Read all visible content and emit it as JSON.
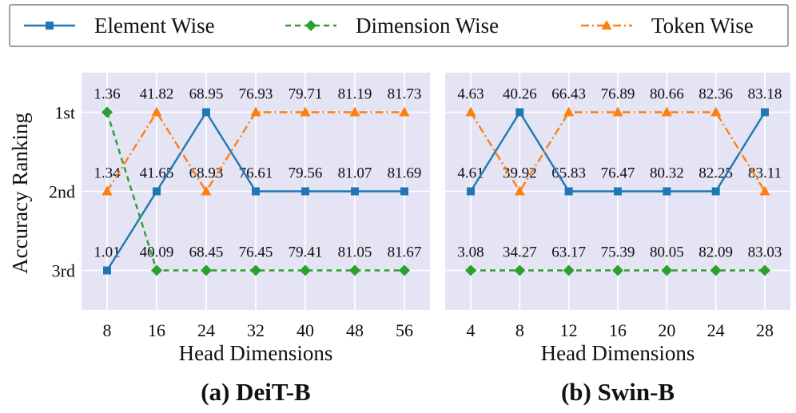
{
  "legend": [
    {
      "name": "Element Wise",
      "color": "#1f77b4",
      "marker": "square",
      "dash": "solid"
    },
    {
      "name": "Dimension Wise",
      "color": "#2ca02c",
      "marker": "diamond",
      "dash": "dashed"
    },
    {
      "name": "Token Wise",
      "color": "#ff7f0e",
      "marker": "triangle",
      "dash": "dashdot"
    }
  ],
  "ylabel": "Accuracy Ranking",
  "yticks": [
    "1st",
    "2nd",
    "3rd"
  ],
  "chart_data": [
    {
      "type": "line",
      "title": "(a) DeiT-B",
      "xlabel": "Head Dimensions",
      "ylabel": "Accuracy Ranking",
      "x": [
        8,
        16,
        24,
        32,
        40,
        48,
        56
      ],
      "ylim": [
        0.5,
        3.5
      ],
      "grid": true,
      "series": [
        {
          "name": "Element Wise",
          "ranks": [
            3,
            2,
            1,
            2,
            2,
            2,
            2
          ]
        },
        {
          "name": "Dimension Wise",
          "ranks": [
            1,
            3,
            3,
            3,
            3,
            3,
            3
          ]
        },
        {
          "name": "Token Wise",
          "ranks": [
            2,
            1,
            2,
            1,
            1,
            1,
            1
          ]
        }
      ],
      "labels_by_rank": {
        "1": [
          "1.36",
          "41.82",
          "68.95",
          "76.93",
          "79.71",
          "81.19",
          "81.73"
        ],
        "2": [
          "1.34",
          "41.65",
          "68.93",
          "76.61",
          "79.56",
          "81.07",
          "81.69"
        ],
        "3": [
          "1.01",
          "40.09",
          "68.45",
          "76.45",
          "79.41",
          "81.05",
          "81.67"
        ]
      }
    },
    {
      "type": "line",
      "title": "(b) Swin-B",
      "xlabel": "Head Dimensions",
      "ylabel": "Accuracy Ranking",
      "x": [
        4,
        8,
        12,
        16,
        20,
        24,
        28
      ],
      "ylim": [
        0.5,
        3.5
      ],
      "grid": true,
      "series": [
        {
          "name": "Element Wise",
          "ranks": [
            2,
            1,
            2,
            2,
            2,
            2,
            1
          ]
        },
        {
          "name": "Dimension Wise",
          "ranks": [
            3,
            3,
            3,
            3,
            3,
            3,
            3
          ]
        },
        {
          "name": "Token Wise",
          "ranks": [
            1,
            2,
            1,
            1,
            1,
            1,
            2
          ]
        }
      ],
      "labels_by_rank": {
        "1": [
          "4.63",
          "40.26",
          "66.43",
          "76.89",
          "80.66",
          "82.36",
          "83.18"
        ],
        "2": [
          "4.61",
          "39.92",
          "65.83",
          "76.47",
          "80.32",
          "82.25",
          "83.11"
        ],
        "3": [
          "3.08",
          "34.27",
          "63.17",
          "75.39",
          "80.05",
          "82.09",
          "83.03"
        ]
      }
    }
  ]
}
